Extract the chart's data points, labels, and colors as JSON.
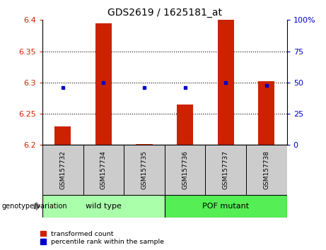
{
  "title": "GDS2619 / 1625181_at",
  "samples": [
    "GSM157732",
    "GSM157734",
    "GSM157735",
    "GSM157736",
    "GSM157737",
    "GSM157738"
  ],
  "red_values": [
    6.23,
    6.395,
    6.202,
    6.265,
    6.402,
    6.302
  ],
  "blue_values": [
    6.292,
    6.3,
    6.292,
    6.292,
    6.3,
    6.295
  ],
  "ymin": 6.2,
  "ymax": 6.4,
  "yticks": [
    6.2,
    6.25,
    6.3,
    6.35,
    6.4
  ],
  "ytick_labels": [
    "6.2",
    "6.25",
    "6.3",
    "6.35",
    "6.4"
  ],
  "right_yticks": [
    0,
    25,
    50,
    75,
    100
  ],
  "right_ytick_labels": [
    "0",
    "25",
    "50",
    "75",
    "100%"
  ],
  "grid_lines": [
    6.25,
    6.3,
    6.35
  ],
  "wild_type_label": "wild type",
  "pof_mutant_label": "POF mutant",
  "genotype_label": "genotype/variation",
  "legend_red": "transformed count",
  "legend_blue": "percentile rank within the sample",
  "bar_color": "#CC2200",
  "blue_color": "#0000CC",
  "wild_type_bg": "#AAFFAA",
  "pof_mutant_bg": "#55EE55",
  "sample_bg": "#CCCCCC",
  "bar_width": 0.4
}
